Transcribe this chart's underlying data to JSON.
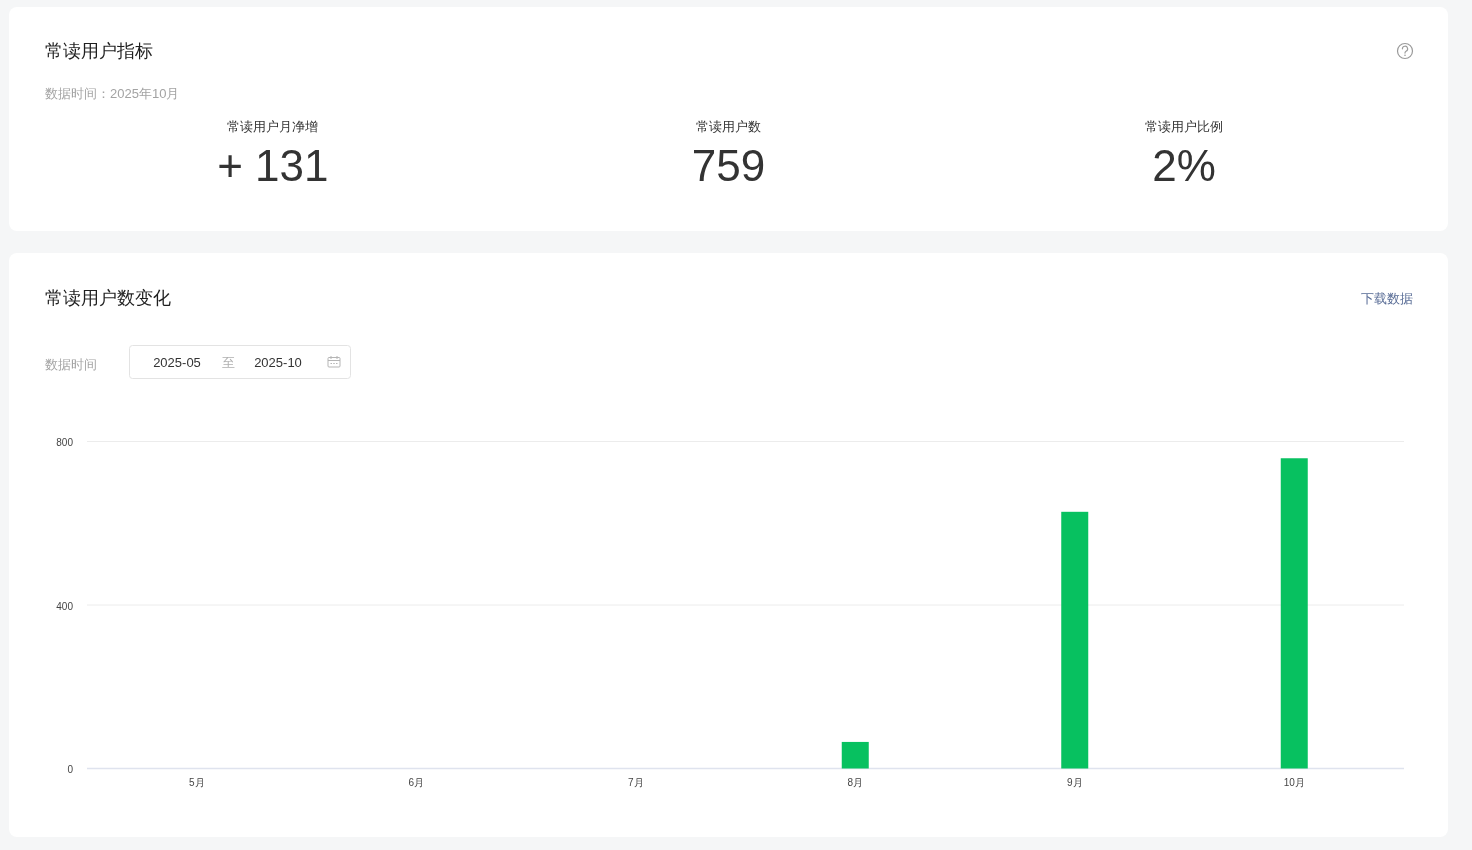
{
  "chart_data": [
    {
      "type": "other",
      "title": "常读用户指标",
      "subtitle": "数据时间：2025年10月",
      "annotations": [
        "常读用户月净增",
        "+ 131",
        "常读用户数",
        "759",
        "常读用户比例",
        "2%"
      ]
    },
    {
      "type": "bar",
      "title": "常读用户数变化",
      "annotations": [
        "下载数据",
        "数据时间",
        "2025-05",
        "至",
        "2025-10"
      ],
      "categories": [
        "5月",
        "6月",
        "7月",
        "8月",
        "9月",
        "10月"
      ],
      "values": [
        0,
        0,
        0,
        65,
        628,
        759
      ],
      "color": "#07c160",
      "ylim": [
        0,
        800
      ],
      "yticks": [
        0,
        400,
        800
      ],
      "grid": "y"
    }
  ]
}
